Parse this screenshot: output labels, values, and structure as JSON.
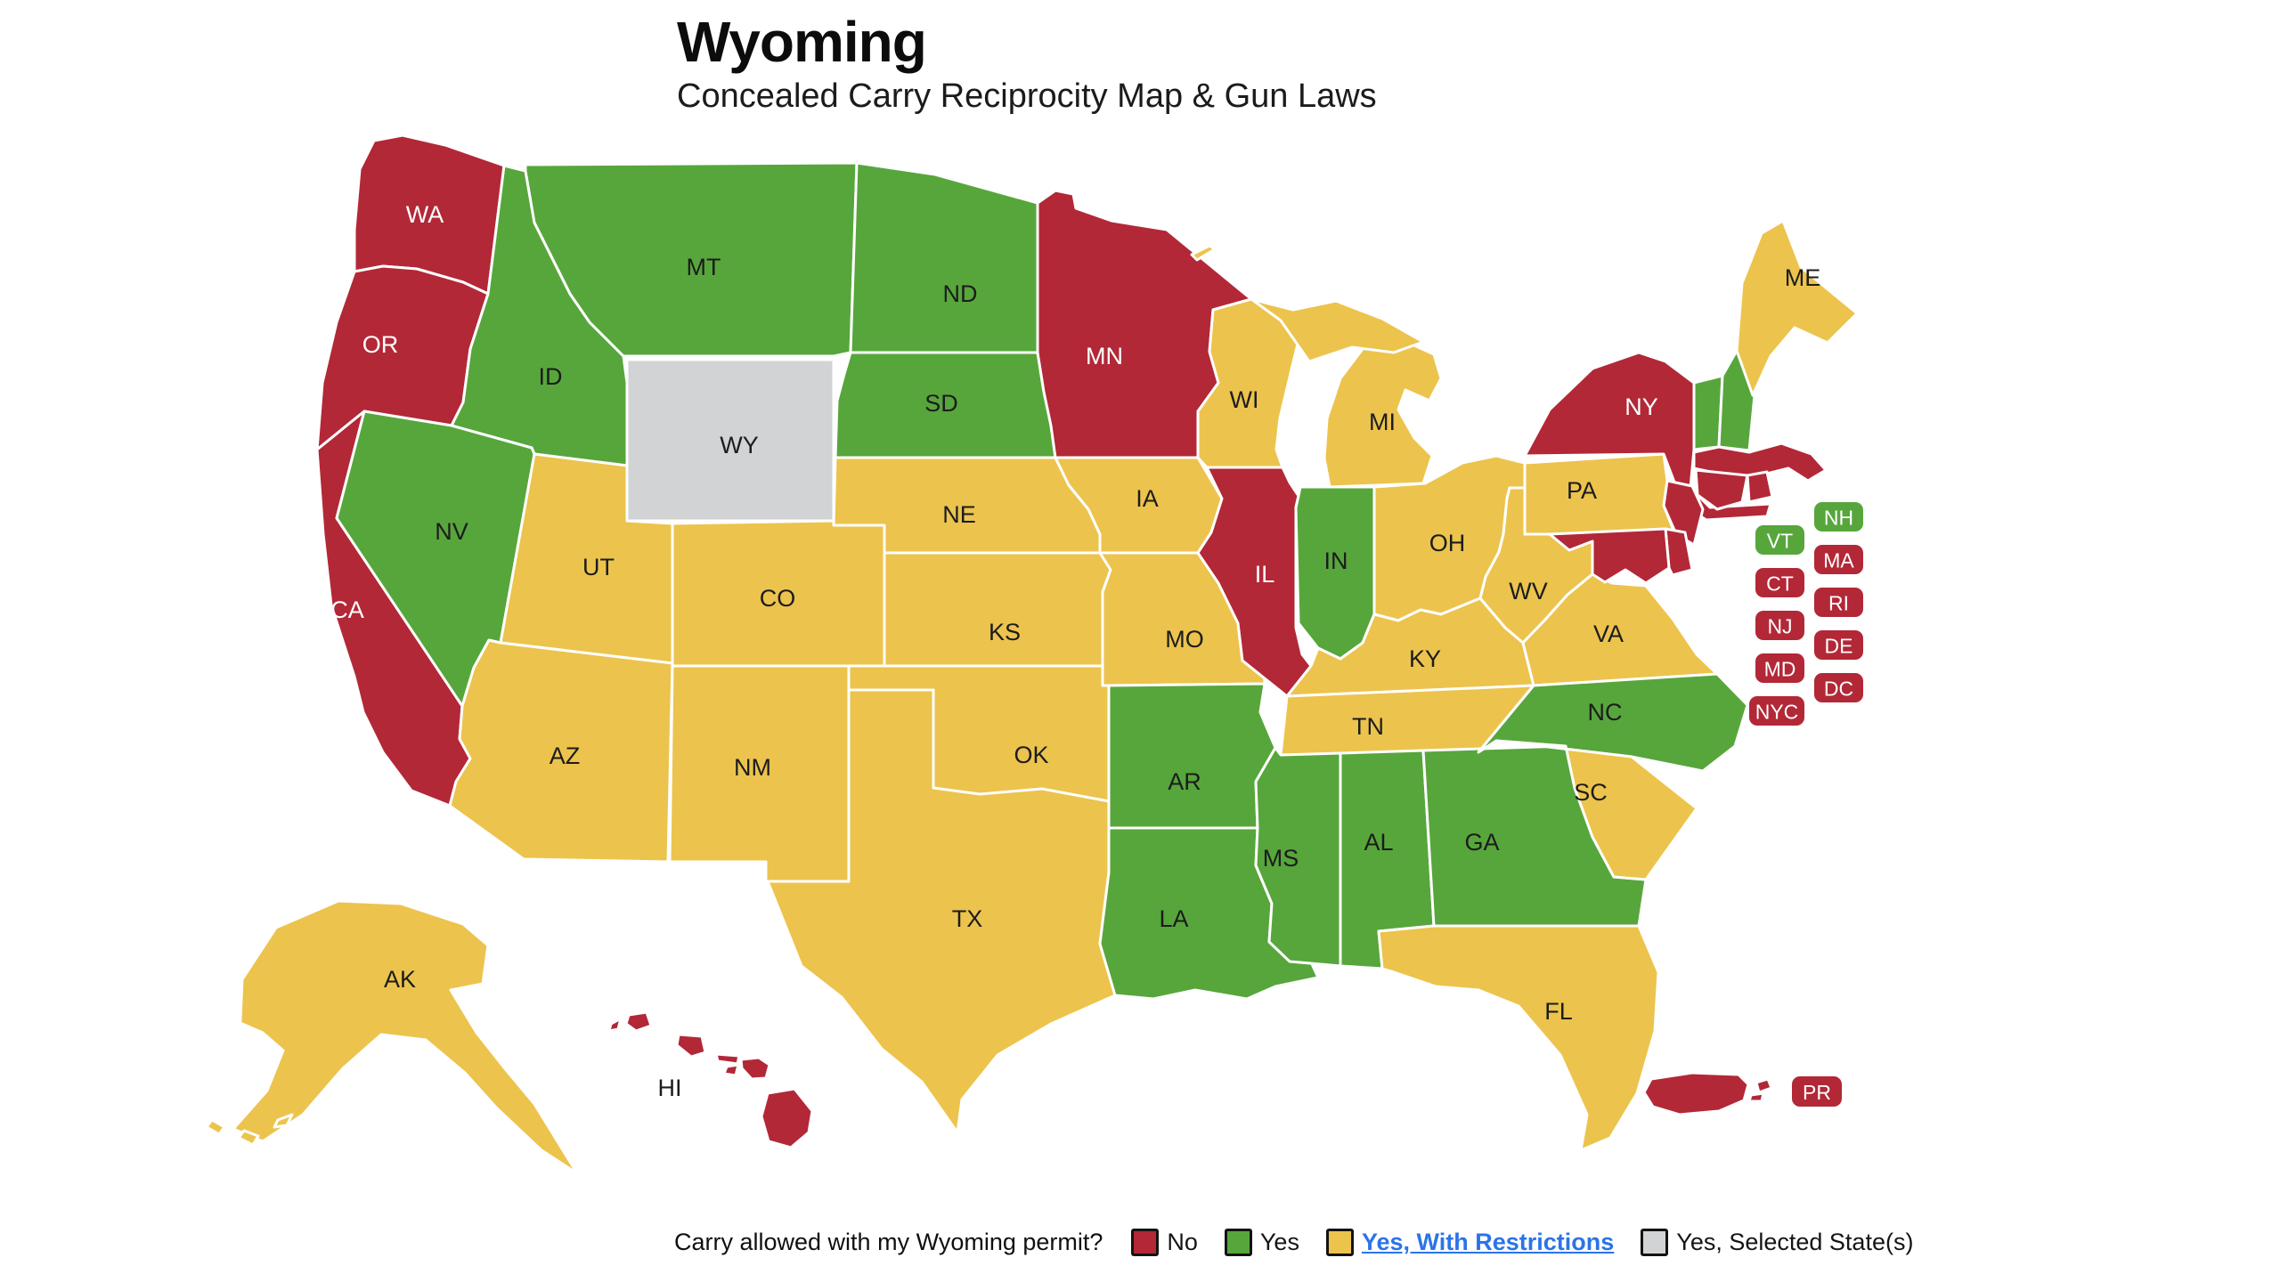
{
  "header": {
    "title": "Wyoming",
    "subtitle": "Concealed Carry Reciprocity Map & Gun Laws"
  },
  "colors": {
    "no": "#b22837",
    "yes": "#57a63c",
    "restricted": "#ecc34d",
    "selected": "#d2d3d5",
    "link": "#2b74e8",
    "label_dark": "#1c1c1c",
    "label_light": "#ffffff",
    "state_border": "#ffffff"
  },
  "legend": {
    "question": "Carry allowed with my Wyoming permit?",
    "items": [
      {
        "status": "no",
        "label": "No",
        "link": false
      },
      {
        "status": "yes",
        "label": "Yes",
        "link": false
      },
      {
        "status": "restricted",
        "label": "Yes, With Restrictions",
        "link": true
      },
      {
        "status": "selected",
        "label": "Yes, Selected State(s)",
        "link": false
      }
    ]
  },
  "map": {
    "selected_state": "WY",
    "states": [
      {
        "abbr": "WA",
        "status": "no"
      },
      {
        "abbr": "OR",
        "status": "no"
      },
      {
        "abbr": "CA",
        "status": "no"
      },
      {
        "abbr": "ID",
        "status": "yes"
      },
      {
        "abbr": "NV",
        "status": "yes"
      },
      {
        "abbr": "MT",
        "status": "yes"
      },
      {
        "abbr": "WY",
        "status": "selected"
      },
      {
        "abbr": "UT",
        "status": "restricted"
      },
      {
        "abbr": "CO",
        "status": "restricted"
      },
      {
        "abbr": "AZ",
        "status": "restricted"
      },
      {
        "abbr": "NM",
        "status": "restricted"
      },
      {
        "abbr": "ND",
        "status": "yes"
      },
      {
        "abbr": "SD",
        "status": "yes"
      },
      {
        "abbr": "NE",
        "status": "restricted"
      },
      {
        "abbr": "KS",
        "status": "restricted"
      },
      {
        "abbr": "OK",
        "status": "restricted"
      },
      {
        "abbr": "TX",
        "status": "restricted"
      },
      {
        "abbr": "MN",
        "status": "no"
      },
      {
        "abbr": "IA",
        "status": "restricted"
      },
      {
        "abbr": "MO",
        "status": "restricted"
      },
      {
        "abbr": "AR",
        "status": "yes"
      },
      {
        "abbr": "LA",
        "status": "yes"
      },
      {
        "abbr": "WI",
        "status": "restricted"
      },
      {
        "abbr": "IL",
        "status": "no"
      },
      {
        "abbr": "IN",
        "status": "yes"
      },
      {
        "abbr": "MI",
        "status": "restricted"
      },
      {
        "abbr": "OH",
        "status": "restricted"
      },
      {
        "abbr": "KY",
        "status": "restricted"
      },
      {
        "abbr": "TN",
        "status": "restricted"
      },
      {
        "abbr": "MS",
        "status": "yes"
      },
      {
        "abbr": "AL",
        "status": "yes"
      },
      {
        "abbr": "GA",
        "status": "yes"
      },
      {
        "abbr": "FL",
        "status": "restricted"
      },
      {
        "abbr": "WV",
        "status": "restricted"
      },
      {
        "abbr": "VA",
        "status": "restricted"
      },
      {
        "abbr": "NC",
        "status": "yes"
      },
      {
        "abbr": "SC",
        "status": "restricted"
      },
      {
        "abbr": "PA",
        "status": "restricted"
      },
      {
        "abbr": "NY",
        "status": "no"
      },
      {
        "abbr": "VT",
        "status": "yes"
      },
      {
        "abbr": "NH",
        "status": "yes"
      },
      {
        "abbr": "ME",
        "status": "restricted"
      },
      {
        "abbr": "MA",
        "status": "no"
      },
      {
        "abbr": "CT",
        "status": "no"
      },
      {
        "abbr": "RI",
        "status": "no"
      },
      {
        "abbr": "NJ",
        "status": "no"
      },
      {
        "abbr": "DE",
        "status": "no"
      },
      {
        "abbr": "MD",
        "status": "no"
      },
      {
        "abbr": "AK",
        "status": "restricted"
      },
      {
        "abbr": "HI",
        "status": "no"
      },
      {
        "abbr": "PR",
        "status": "no"
      }
    ],
    "boxes": [
      {
        "abbr": "VT",
        "status": "yes"
      },
      {
        "abbr": "NH",
        "status": "yes"
      },
      {
        "abbr": "CT",
        "status": "no"
      },
      {
        "abbr": "MA",
        "status": "no"
      },
      {
        "abbr": "NJ",
        "status": "no"
      },
      {
        "abbr": "RI",
        "status": "no"
      },
      {
        "abbr": "MD",
        "status": "no"
      },
      {
        "abbr": "DE",
        "status": "no"
      },
      {
        "abbr": "NYC",
        "status": "no"
      },
      {
        "abbr": "DC",
        "status": "no"
      },
      {
        "abbr": "PR",
        "status": "no"
      }
    ]
  }
}
